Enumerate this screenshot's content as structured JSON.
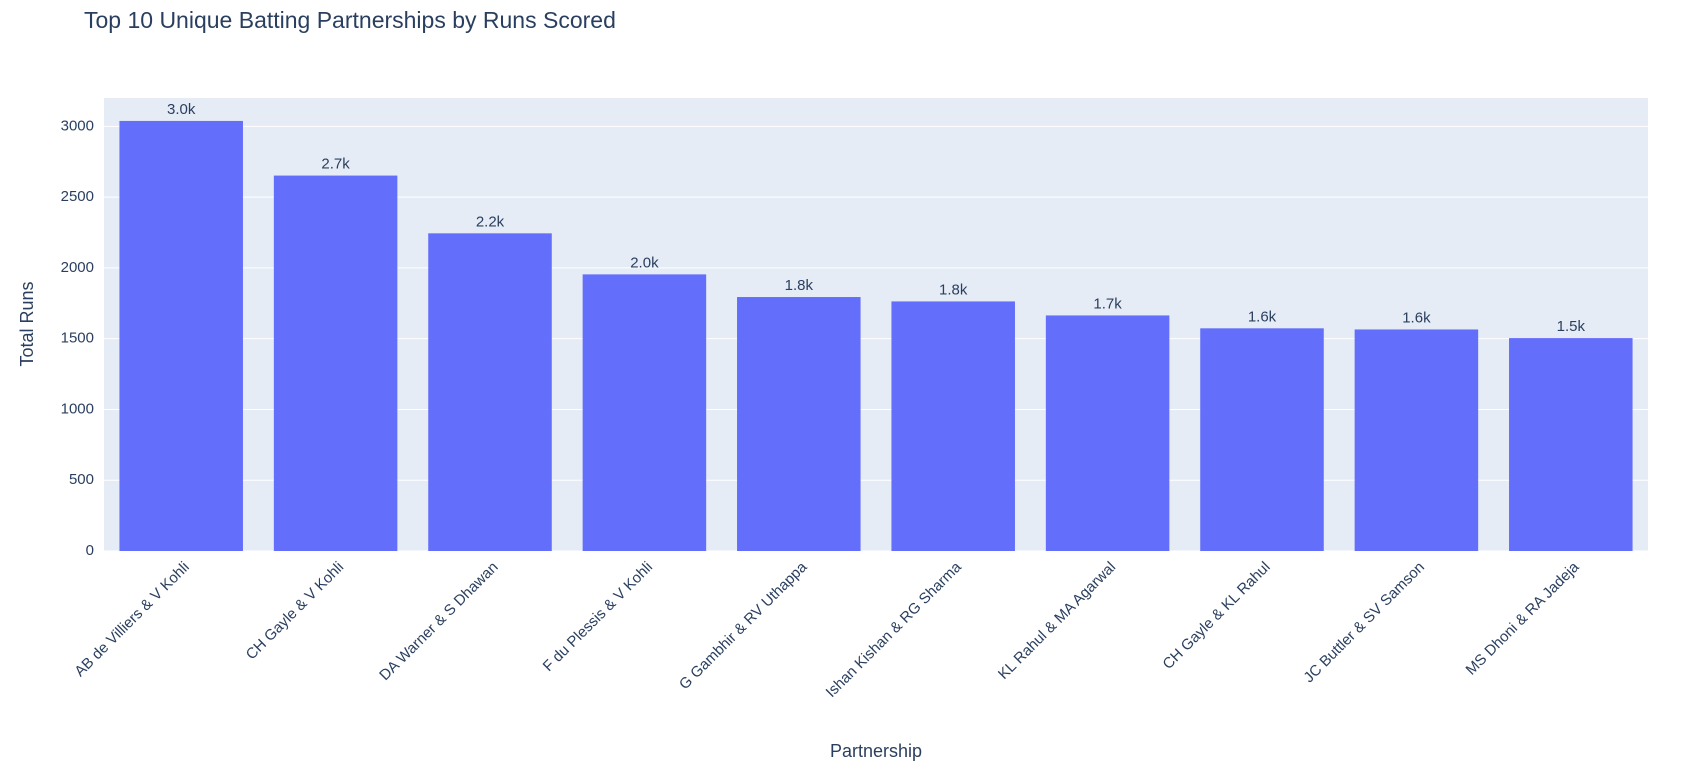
{
  "chart_data": {
    "type": "bar",
    "title": "Top 10 Unique Batting Partnerships by Runs Scored",
    "x_label": "Partnership",
    "y_label": "Total Runs",
    "categories": [
      "AB de Villiers & V Kohli",
      "CH Gayle & V Kohli",
      "DA Warner & S Dhawan",
      "F du Plessis & V Kohli",
      "G Gambhir & RV Uthappa",
      "Ishan Kishan & RG Sharma",
      "KL Rahul & MA Agarwal",
      "CH Gayle & KL Rahul",
      "JC Buttler & SV Samson",
      "MS Dhoni & RA Jadeja"
    ],
    "values": [
      3038,
      2652,
      2244,
      1954,
      1794,
      1763,
      1664,
      1573,
      1565,
      1504
    ],
    "value_labels": [
      "3.0k",
      "2.7k",
      "2.2k",
      "2.0k",
      "1.8k",
      "1.8k",
      "1.7k",
      "1.6k",
      "1.6k",
      "1.5k"
    ],
    "color": "#636efa",
    "ylim": [
      0,
      3200
    ],
    "yticks": [
      0,
      500,
      1000,
      1500,
      2000,
      2500,
      3000
    ],
    "grid": true
  }
}
